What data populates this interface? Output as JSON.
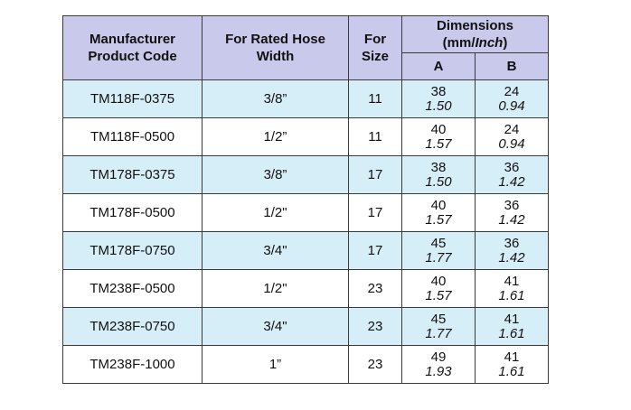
{
  "table": {
    "headers": {
      "manufacturer_line1": "Manufacturer",
      "manufacturer_line2": "Product Code",
      "hose_line1": "For Rated Hose",
      "hose_line2": "Width",
      "size_line1": "For",
      "size_line2": "Size",
      "dimensions_line1": "Dimensions",
      "dimensions_line2_prefix": "(mm/",
      "dimensions_line2_italic": "Inch",
      "dimensions_line2_suffix": ")",
      "col_a": "A",
      "col_b": "B"
    },
    "rows": [
      {
        "code": "TM118F-0375",
        "hose_width": "3/8”",
        "size": "11",
        "a_mm": "38",
        "a_in": "1.50",
        "b_mm": "24",
        "b_in": "0.94"
      },
      {
        "code": "TM118F-0500",
        "hose_width": "1/2”",
        "size": "11",
        "a_mm": "40",
        "a_in": "1.57",
        "b_mm": "24",
        "b_in": "0.94"
      },
      {
        "code": "TM178F-0375",
        "hose_width": "3/8”",
        "size": "17",
        "a_mm": "38",
        "a_in": "1.50",
        "b_mm": "36",
        "b_in": "1.42"
      },
      {
        "code": "TM178F-0500",
        "hose_width": "1/2\"",
        "size": "17",
        "a_mm": "40",
        "a_in": "1.57",
        "b_mm": "36",
        "b_in": "1.42"
      },
      {
        "code": "TM178F-0750",
        "hose_width": "3/4\"",
        "size": "17",
        "a_mm": "45",
        "a_in": "1.77",
        "b_mm": "36",
        "b_in": "1.42"
      },
      {
        "code": "TM238F-0500",
        "hose_width": "1/2\"",
        "size": "23",
        "a_mm": "40",
        "a_in": "1.57",
        "b_mm": "41",
        "b_in": "1.61"
      },
      {
        "code": "TM238F-0750",
        "hose_width": "3/4\"",
        "size": "23",
        "a_mm": "45",
        "a_in": "1.77",
        "b_mm": "41",
        "b_in": "1.61"
      },
      {
        "code": "TM238F-1000",
        "hose_width": "1”",
        "size": "23",
        "a_mm": "49",
        "a_in": "1.93",
        "b_mm": "41",
        "b_in": "1.61"
      }
    ]
  },
  "colors": {
    "header_bg": "#c9c9ec",
    "shaded_row_bg": "#d6eef8",
    "border": "#3a3a3a"
  }
}
